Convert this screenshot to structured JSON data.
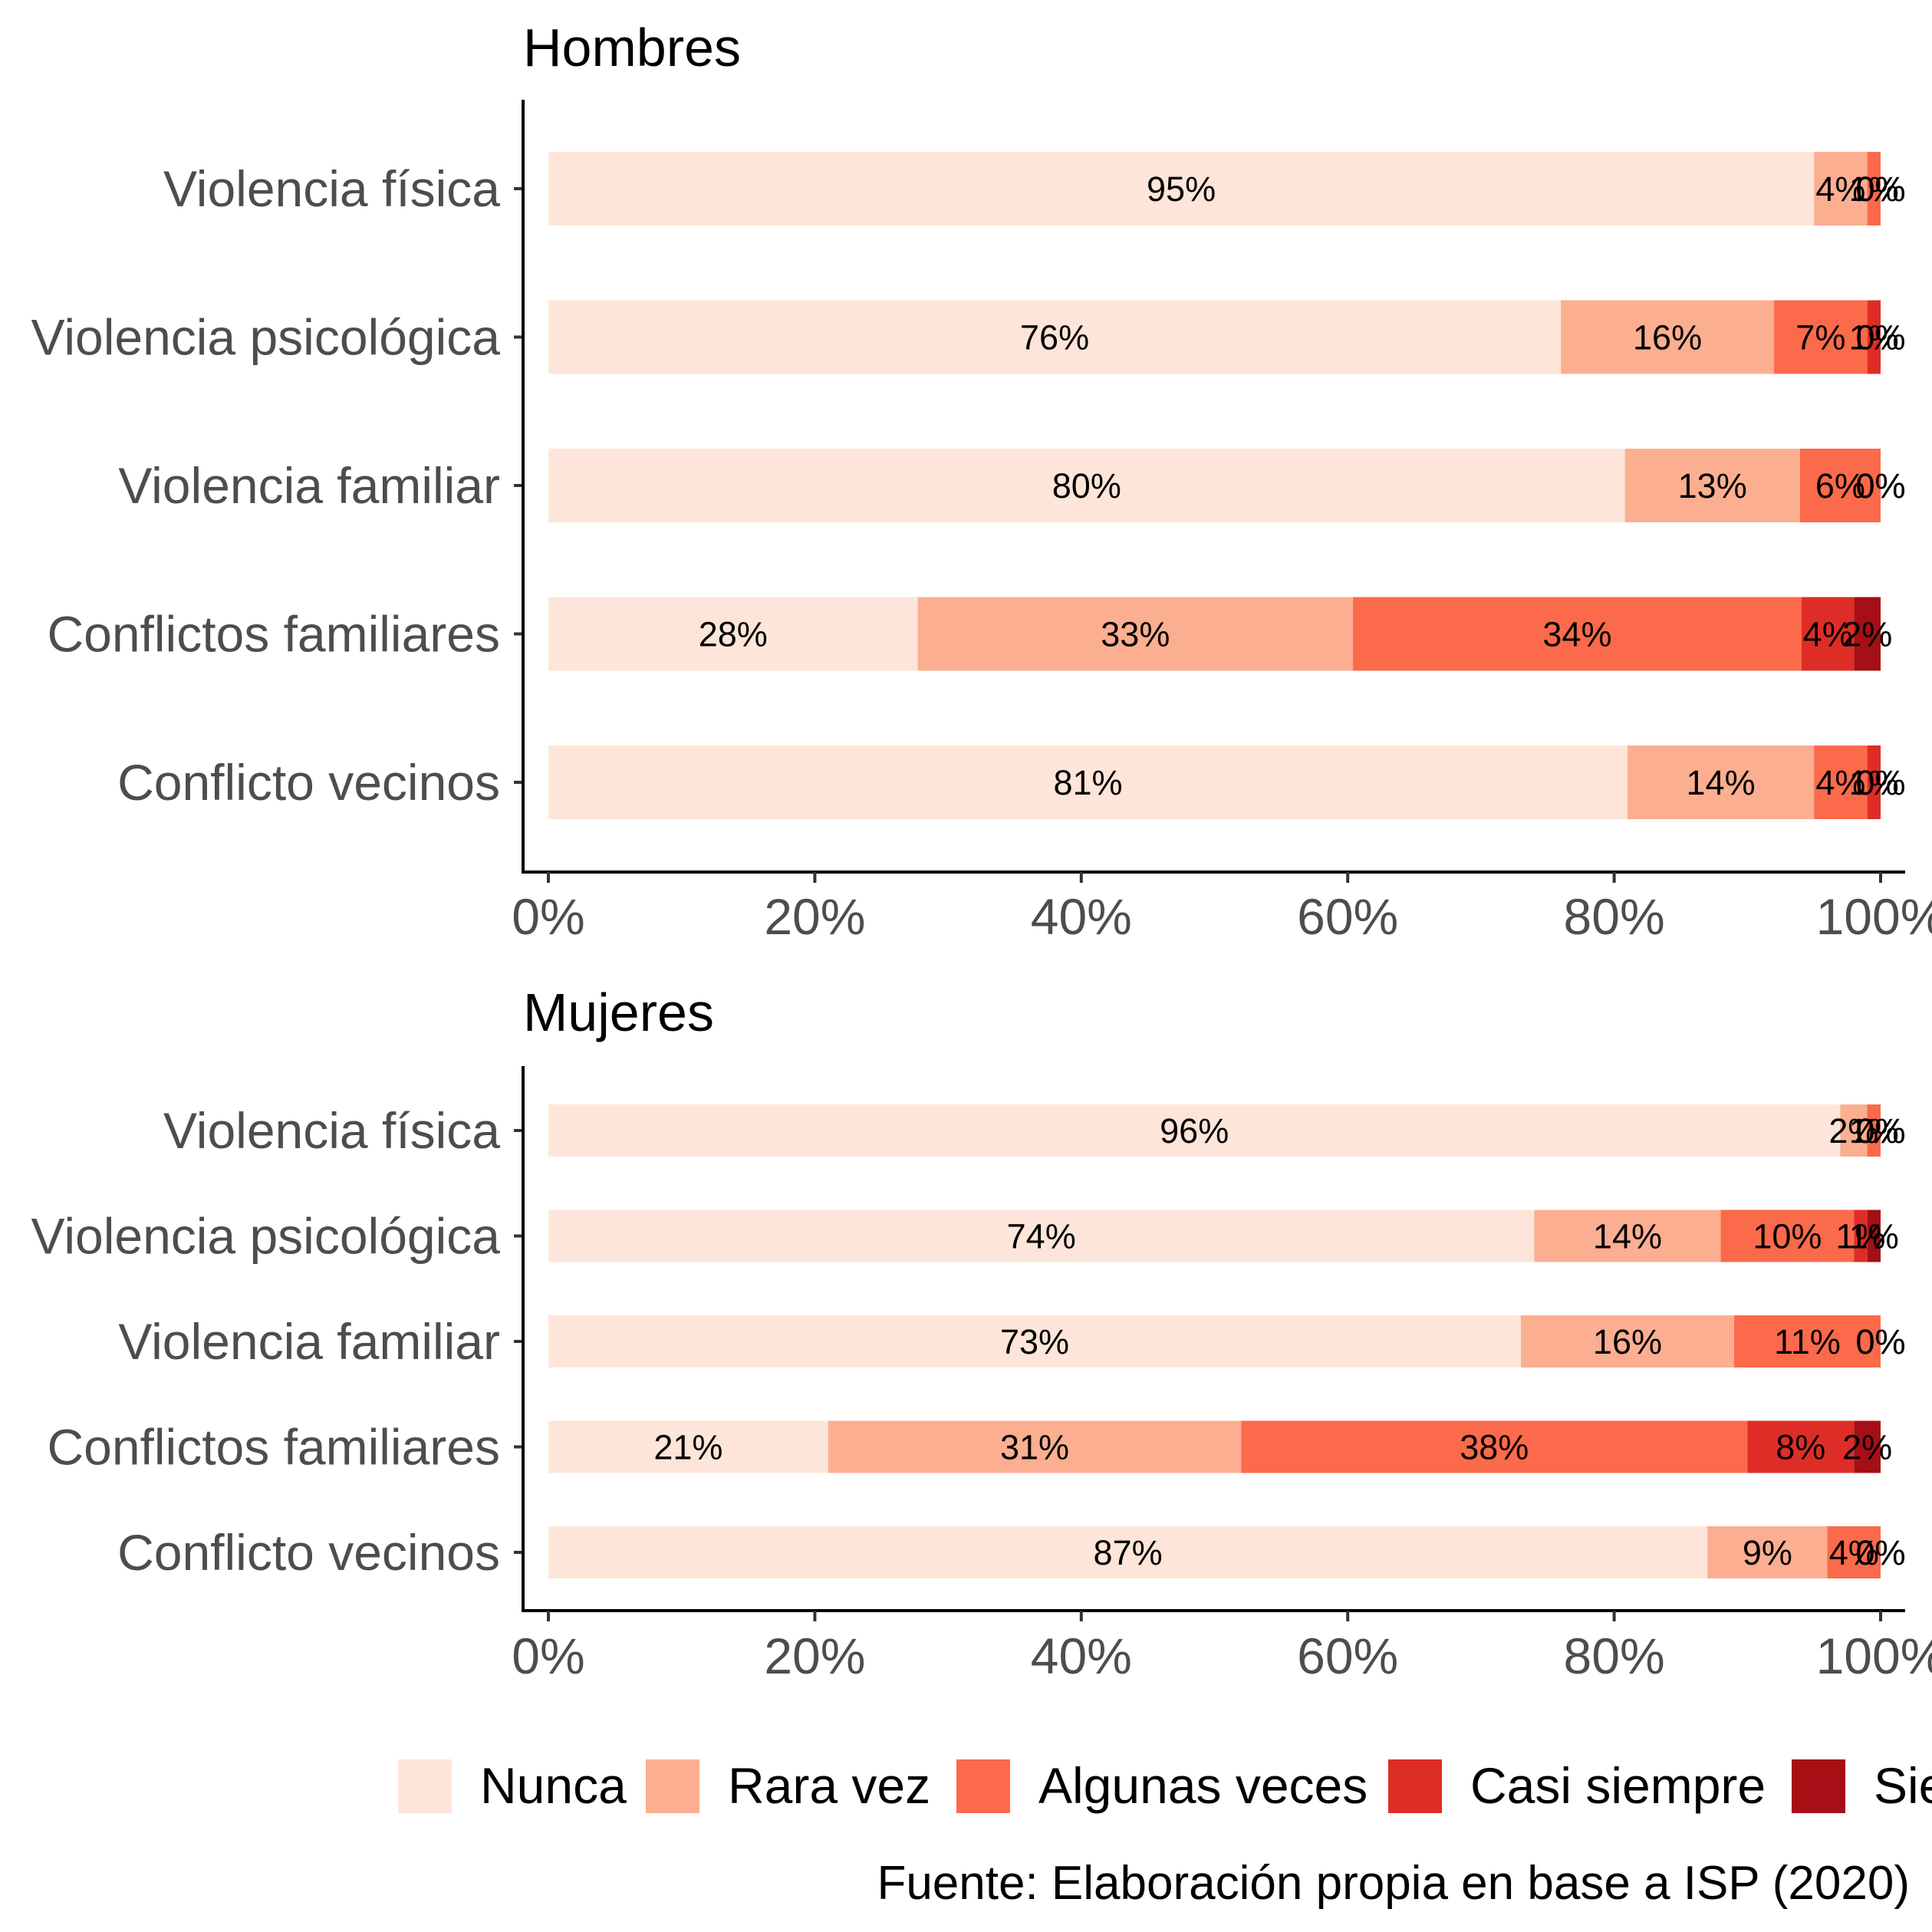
{
  "chart_data": [
    {
      "type": "bar",
      "orientation": "horizontal",
      "stacked": "percent",
      "title": "Hombres",
      "categories": [
        "Violencia física",
        "Violencia psicológica",
        "Violencia familiar",
        "Conflictos familiares",
        "Conflicto vecinos"
      ],
      "series": [
        {
          "name": "Nunca",
          "values": [
            95,
            76,
            80,
            28,
            81
          ]
        },
        {
          "name": "Rara vez",
          "values": [
            4,
            16,
            13,
            33,
            14
          ]
        },
        {
          "name": "Algunas veces",
          "values": [
            1,
            7,
            6,
            34,
            4
          ]
        },
        {
          "name": "Casi siempre",
          "values": [
            0,
            1,
            0,
            4,
            1
          ]
        },
        {
          "name": "Siempre",
          "values": [
            0,
            0,
            0,
            2,
            0
          ]
        }
      ],
      "xlim": [
        0,
        100
      ],
      "xticks": [
        "0%",
        "20%",
        "40%",
        "60%",
        "80%",
        "100%"
      ],
      "grid": false
    },
    {
      "type": "bar",
      "orientation": "horizontal",
      "stacked": "percent",
      "title": "Mujeres",
      "categories": [
        "Violencia física",
        "Violencia psicológica",
        "Violencia familiar",
        "Conflictos familiares",
        "Conflicto vecinos"
      ],
      "series": [
        {
          "name": "Nunca",
          "values": [
            96,
            74,
            73,
            21,
            87
          ]
        },
        {
          "name": "Rara vez",
          "values": [
            2,
            14,
            16,
            31,
            9
          ]
        },
        {
          "name": "Algunas veces",
          "values": [
            1,
            10,
            11,
            38,
            4
          ]
        },
        {
          "name": "Casi siempre",
          "values": [
            0,
            1,
            0,
            8,
            0
          ]
        },
        {
          "name": "Siempre",
          "values": [
            0,
            1,
            0,
            2,
            0
          ]
        }
      ],
      "xlim": [
        0,
        100
      ],
      "xticks": [
        "0%",
        "20%",
        "40%",
        "60%",
        "80%",
        "100%"
      ],
      "grid": false
    }
  ],
  "legend": {
    "placement": "bottom",
    "items": [
      "Nunca",
      "Rara vez",
      "Algunas veces",
      "Casi siempre",
      "Siempre"
    ],
    "colors": [
      "#fee5d9",
      "#fcae91",
      "#fb6a4a",
      "#de2d26",
      "#a50f15"
    ]
  },
  "caption": "Fuente: Elaboración propia en base a ISP (2020)"
}
